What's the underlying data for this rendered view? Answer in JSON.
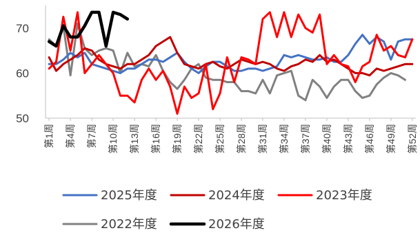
{
  "chart_data": {
    "type": "line",
    "title": "",
    "xlabel": "",
    "ylabel": "",
    "ylim": [
      50,
      75
    ],
    "yticks": [
      50,
      60,
      70
    ],
    "grid": false,
    "legend_position": "bottom",
    "categories": [
      "第1周",
      "第2周",
      "第3周",
      "第4周",
      "第5周",
      "第6周",
      "第7周",
      "第8周",
      "第9周",
      "第10周",
      "第11周",
      "第12周",
      "第13周",
      "第14周",
      "第15周",
      "第16周",
      "第17周",
      "第18周",
      "第19周",
      "第20周",
      "第21周",
      "第22周",
      "第23周",
      "第24周",
      "第25周",
      "第26周",
      "第27周",
      "第28周",
      "第29周",
      "第30周",
      "第31周",
      "第32周",
      "第33周",
      "第34周",
      "第35周",
      "第36周",
      "第37周",
      "第38周",
      "第39周",
      "第40周",
      "第41周",
      "第42周",
      "第43周",
      "第44周",
      "第45周",
      "第46周",
      "第47周",
      "第48周",
      "第49周",
      "第50周",
      "第51周",
      "第52周"
    ],
    "tick_labels": [
      "第1周",
      "第4周",
      "第7周",
      "第10周",
      "第13周",
      "第16周",
      "第19周",
      "第22周",
      "第25周",
      "第28周",
      "第31周",
      "第34周",
      "第37周",
      "第40周",
      "第43周",
      "第46周",
      "第49周",
      "第52周"
    ],
    "series": [
      {
        "name": "2022年度",
        "color": "#808080",
        "values": [
          67.5,
          66,
          70.5,
          59.5,
          71,
          65.5,
          64,
          65,
          65.5,
          65,
          60,
          64.5,
          61.5,
          62,
          61.5,
          64,
          60.5,
          58,
          56.5,
          58.5,
          61,
          62,
          59,
          58.5,
          58.5,
          58,
          58,
          56,
          56,
          55.5,
          58.5,
          55.5,
          59.5,
          60,
          60.5,
          55,
          54,
          58.5,
          57,
          54.5,
          57,
          58.5,
          58.5,
          56,
          54.5,
          55,
          57.5,
          59,
          60,
          59.5,
          58.5,
          null
        ]
      },
      {
        "name": "2025年度",
        "color": "#4472C4",
        "values": [
          62,
          62,
          63,
          64.5,
          63.5,
          64.5,
          62,
          61.5,
          61,
          60.5,
          60,
          61,
          61,
          62,
          63,
          63,
          62.5,
          63.5,
          64.5,
          62.5,
          61,
          60,
          61.5,
          62.5,
          62.5,
          61.5,
          60.5,
          60.5,
          61,
          61,
          60.5,
          61,
          61.5,
          64,
          63.5,
          64,
          63.5,
          63,
          63,
          63.5,
          62.5,
          62.5,
          64,
          66.5,
          68.5,
          66.5,
          68,
          67,
          63,
          67,
          67.5,
          67.5
        ]
      },
      {
        "name": "2024年度",
        "color": "#C00000",
        "values": [
          63.5,
          60.5,
          62,
          63,
          64,
          65.5,
          65,
          63,
          62,
          61.5,
          61,
          62,
          62,
          63,
          64,
          66,
          67,
          68,
          64.5,
          62,
          61.5,
          61,
          62,
          62.5,
          61.5,
          61,
          62,
          63,
          62.5,
          62,
          62.5,
          62,
          61,
          60.5,
          61.5,
          62,
          63,
          62.5,
          64,
          62.5,
          63,
          62,
          61,
          60,
          60,
          59.5,
          61,
          60.5,
          61,
          61.5,
          62,
          62
        ]
      },
      {
        "name": "2023年度",
        "color": "#FF0000",
        "values": [
          61,
          62.5,
          72.5,
          65,
          73.5,
          60,
          62,
          64,
          62,
          60,
          55,
          55,
          53.5,
          58.5,
          61,
          58.5,
          60.5,
          57,
          51,
          57,
          54.5,
          55.5,
          62,
          52,
          55.5,
          63.5,
          58,
          63.5,
          63,
          62,
          72,
          73.5,
          68,
          73.5,
          68,
          73,
          70,
          69,
          73,
          62,
          64,
          62,
          61.5,
          58,
          61.5,
          62.5,
          68.5,
          65,
          66,
          64,
          63.5,
          67.5
        ]
      },
      {
        "name": "2026年度",
        "color": "#000000",
        "values": [
          67,
          66,
          70.5,
          68,
          68,
          70.5,
          73.5,
          73.5,
          66,
          73.5,
          73,
          72,
          null,
          null,
          null,
          null,
          null,
          null,
          null,
          null,
          null,
          null,
          null,
          null,
          null,
          null,
          null,
          null,
          null,
          null,
          null,
          null,
          null,
          null,
          null,
          null,
          null,
          null,
          null,
          null,
          null,
          null,
          null,
          null,
          null,
          null,
          null,
          null,
          null,
          null,
          null,
          null
        ]
      }
    ],
    "legend_order": [
      "2025年度",
      "2024年度",
      "2023年度",
      "2022年度",
      "2026年度"
    ]
  }
}
